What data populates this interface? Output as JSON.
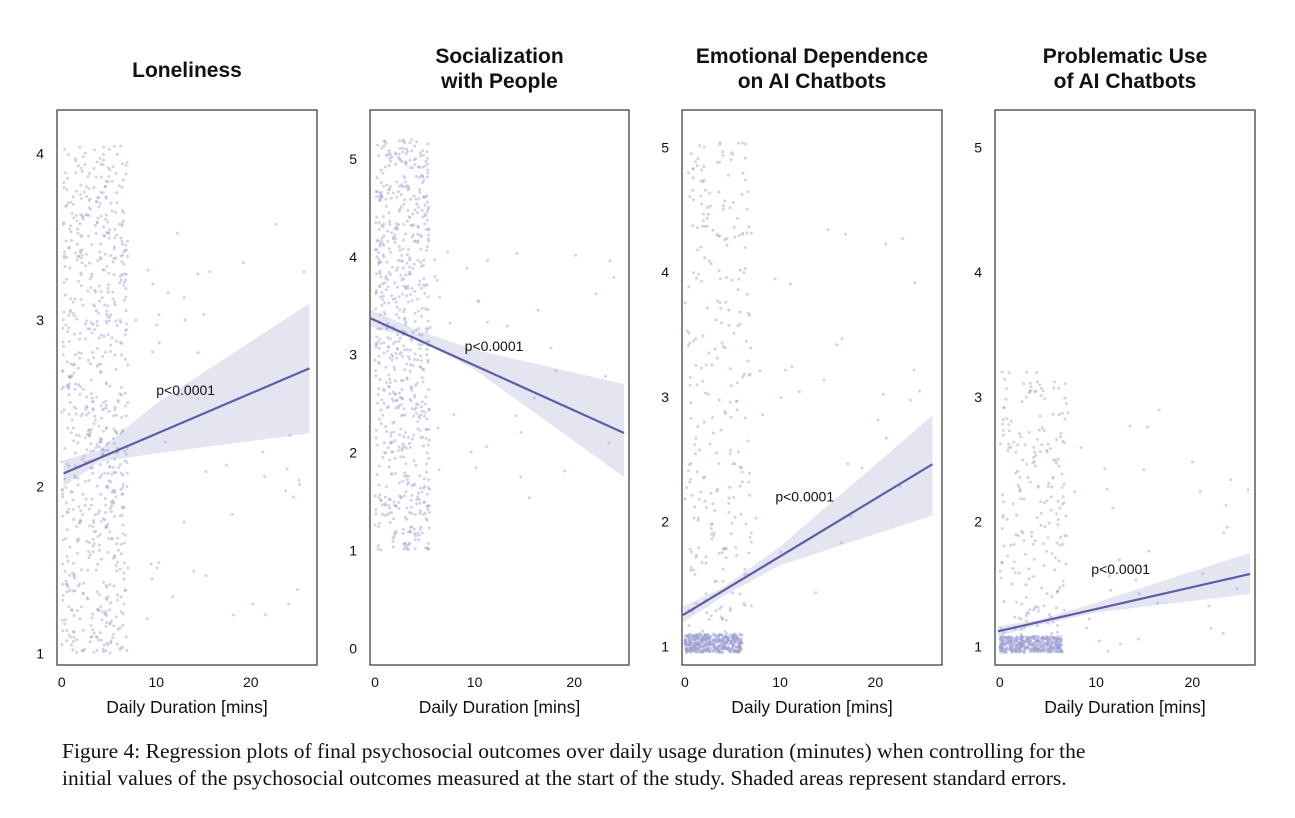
{
  "chart_data": [
    {
      "type": "scatter",
      "title": "Loneliness",
      "xlabel": "Daily Duration [mins]",
      "ylabel": "",
      "xlim": [
        -0.5,
        27
      ],
      "ylim": [
        0.93,
        4.26
      ],
      "xticks": [
        "0",
        "10",
        "20"
      ],
      "yticks": [
        "1",
        "2",
        "3",
        "4"
      ],
      "grid": false,
      "annotation": {
        "text": "p<0.0001",
        "x": 10,
        "y": 2.55
      },
      "regression": {
        "x": [
          0.2,
          26.2
        ],
        "y": [
          2.08,
          2.71
        ]
      },
      "se_band": [
        [
          0.2,
          2.0,
          2.16
        ],
        [
          4,
          2.15,
          2.22
        ],
        [
          10,
          2.2,
          2.5
        ],
        [
          26.2,
          2.32,
          3.1
        ]
      ],
      "scatter": {
        "n_main": 750,
        "main_x": [
          0,
          7
        ],
        "main_y": [
          1,
          4.05
        ],
        "n_sparse": 45,
        "sparse_x": [
          7,
          26
        ],
        "sparse_y": [
          1.2,
          3.6
        ],
        "dense_band": null
      }
    },
    {
      "type": "scatter",
      "title": "Socialization\nwith People",
      "xlabel": "Daily Duration [mins]",
      "ylabel": "",
      "xlim": [
        -0.5,
        25.5
      ],
      "ylim": [
        -0.17,
        5.5
      ],
      "xticks": [
        "0",
        "10",
        "20"
      ],
      "yticks": [
        "0",
        "1",
        "2",
        "3",
        "4",
        "5"
      ],
      "grid": false,
      "annotation": {
        "text": "p<0.0001",
        "x": 9,
        "y": 3.04
      },
      "regression": {
        "x": [
          -0.4,
          25
        ],
        "y": [
          3.37,
          2.2
        ]
      },
      "se_band": [
        [
          -0.4,
          3.28,
          3.46
        ],
        [
          4,
          3.17,
          3.26
        ],
        [
          10,
          2.85,
          3.05
        ],
        [
          25,
          1.75,
          2.7
        ]
      ],
      "scatter": {
        "n_main": 700,
        "main_x": [
          0,
          5.5
        ],
        "main_y": [
          1,
          5.2
        ],
        "n_sparse": 35,
        "sparse_x": [
          5.5,
          25
        ],
        "sparse_y": [
          1.5,
          4.2
        ],
        "dense_band": null
      }
    },
    {
      "type": "scatter",
      "title": "Emotional Dependence\non AI Chatbots",
      "xlabel": "Daily Duration [mins]",
      "ylabel": "",
      "xlim": [
        -0.3,
        27
      ],
      "ylim": [
        0.85,
        5.3
      ],
      "xticks": [
        "0",
        "10",
        "20"
      ],
      "yticks": [
        "1",
        "2",
        "3",
        "4",
        "5"
      ],
      "grid": false,
      "annotation": {
        "text": "p<0.0001",
        "x": 9.5,
        "y": 2.16
      },
      "regression": {
        "x": [
          -0.2,
          26
        ],
        "y": [
          1.25,
          2.46
        ]
      },
      "se_band": [
        [
          -0.2,
          1.19,
          1.32
        ],
        [
          4,
          1.4,
          1.47
        ],
        [
          10,
          1.65,
          1.8
        ],
        [
          26,
          2.05,
          2.85
        ]
      ],
      "scatter": {
        "n_main": 280,
        "main_x": [
          0,
          7
        ],
        "main_y": [
          1.1,
          5.05
        ],
        "n_sparse": 30,
        "sparse_x": [
          7,
          26
        ],
        "sparse_y": [
          0.95,
          4.4
        ],
        "dense_band": {
          "n": 450,
          "x": [
            0,
            6
          ],
          "y": [
            0.95,
            1.1
          ]
        }
      }
    },
    {
      "type": "scatter",
      "title": "Problematic Use\nof AI Chatbots",
      "xlabel": "Daily Duration [mins]",
      "ylabel": "",
      "xlim": [
        -0.5,
        26.5
      ],
      "ylim": [
        0.85,
        5.3
      ],
      "xticks": [
        "0",
        "10",
        "20"
      ],
      "yticks": [
        "1",
        "2",
        "3",
        "4",
        "5"
      ],
      "grid": false,
      "annotation": {
        "text": "p<0.0001",
        "x": 9.5,
        "y": 1.58
      },
      "regression": {
        "x": [
          -0.2,
          26
        ],
        "y": [
          1.12,
          1.58
        ]
      },
      "se_band": [
        [
          -0.2,
          1.08,
          1.16
        ],
        [
          4,
          1.17,
          1.21
        ],
        [
          10,
          1.27,
          1.35
        ],
        [
          26,
          1.42,
          1.75
        ]
      ],
      "scatter": {
        "n_main": 220,
        "main_x": [
          0,
          7
        ],
        "main_y": [
          1.05,
          3.2
        ],
        "n_sparse": 40,
        "sparse_x": [
          6,
          26
        ],
        "sparse_y": [
          0.95,
          2.9
        ],
        "dense_band": {
          "n": 420,
          "x": [
            0,
            6.5
          ],
          "y": [
            0.95,
            1.08
          ]
        }
      }
    }
  ],
  "caption": {
    "line1": "Figure 4: Regression plots of final psychosocial outcomes over daily usage duration (minutes) when controlling for the",
    "line2": "initial values of the psychosocial outcomes measured at the start of the study. Shaded areas represent standard errors."
  },
  "colors": {
    "line": "#5b5ea6",
    "band": "#e4e5f0",
    "point": "#9c9ed0",
    "frame": "#333333"
  }
}
